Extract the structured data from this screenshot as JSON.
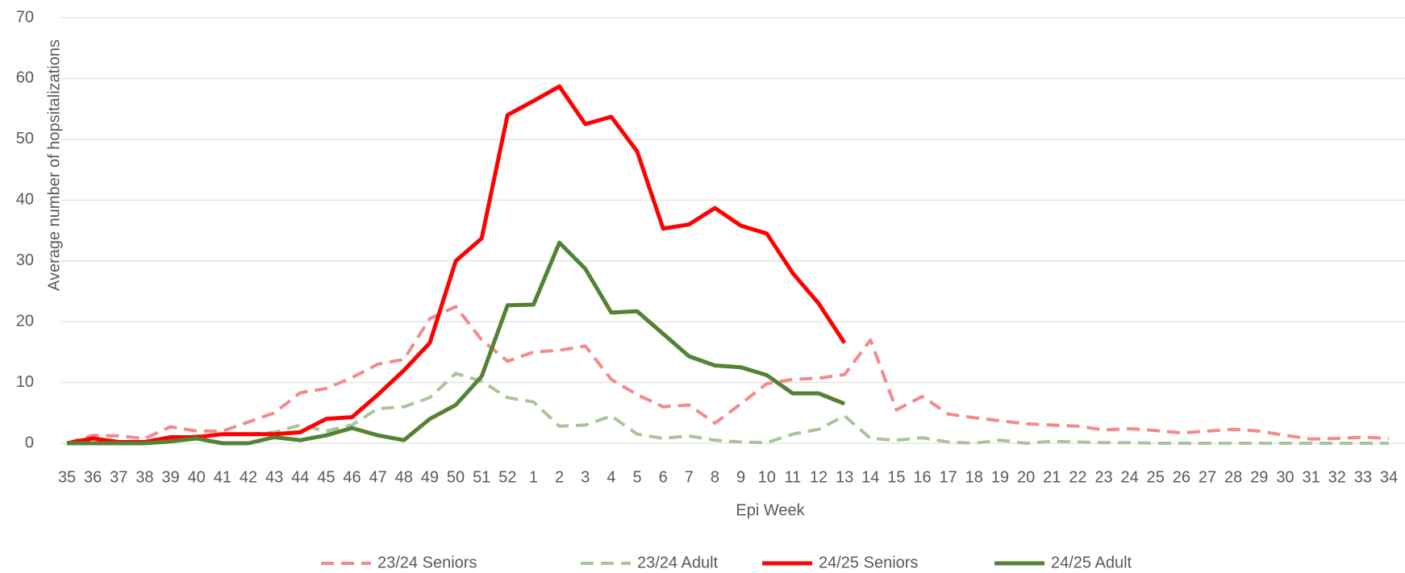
{
  "chart_data": {
    "type": "line",
    "x_label": "Epi Week",
    "y_label": "Average number of hopsitalizations",
    "categories": [
      "35",
      "36",
      "37",
      "38",
      "39",
      "40",
      "41",
      "42",
      "43",
      "44",
      "45",
      "46",
      "47",
      "48",
      "49",
      "50",
      "51",
      "52",
      "1",
      "2",
      "3",
      "4",
      "5",
      "6",
      "7",
      "8",
      "9",
      "10",
      "11",
      "12",
      "13",
      "14",
      "15",
      "16",
      "17",
      "18",
      "19",
      "20",
      "21",
      "22",
      "23",
      "24",
      "25",
      "26",
      "27",
      "28",
      "29",
      "30",
      "31",
      "32",
      "33",
      "34"
    ],
    "series": [
      {
        "name": "23/24 Seniors",
        "color": "#f4898a",
        "dashed": true,
        "values": [
          0,
          1.3,
          1.2,
          0.8,
          2.7,
          2,
          2,
          3.5,
          5,
          8.3,
          9,
          10.8,
          13,
          13.8,
          20.5,
          22.5,
          17,
          13.5,
          15,
          15.3,
          16,
          10.5,
          8,
          6,
          6.3,
          3.3,
          6.5,
          9.8,
          10.5,
          10.7,
          11.3,
          17,
          5.5,
          7.7,
          4.8,
          4.2,
          3.7,
          3.2,
          3,
          2.8,
          2.2,
          2.4,
          2.1,
          1.7,
          2,
          2.3,
          2,
          1.3,
          0.7,
          0.8,
          1,
          0.8
        ]
      },
      {
        "name": "23/24 Adult",
        "color": "#a9c49a",
        "dashed": true,
        "values": [
          0,
          0.8,
          0.3,
          0.3,
          0.5,
          1.2,
          1.5,
          1.5,
          1.8,
          3,
          2,
          3,
          5.7,
          6,
          7.5,
          11.5,
          10.2,
          7.5,
          6.8,
          2.8,
          3,
          4.5,
          1.5,
          0.8,
          1.2,
          0.5,
          0.2,
          0.1,
          1.5,
          2.3,
          4.5,
          0.8,
          0.5,
          0.9,
          0.2,
          0,
          0.5,
          0,
          0.3,
          0.2,
          0.1,
          0.1,
          0,
          0,
          0,
          0,
          0,
          0,
          0,
          0,
          0,
          0
        ]
      },
      {
        "name": "24/25 Seniors",
        "color": "#ff0000",
        "dashed": false,
        "values": [
          0,
          0.8,
          0.2,
          0.2,
          1,
          1,
          1.5,
          1.5,
          1.5,
          1.8,
          4,
          4.3,
          8,
          12,
          16.5,
          30,
          33.7,
          54,
          56.3,
          58.7,
          52.5,
          53.7,
          48,
          35.3,
          36,
          38.7,
          35.8,
          34.5,
          28,
          23,
          16.5,
          null,
          null,
          null,
          null,
          null,
          null,
          null,
          null,
          null,
          null,
          null,
          null,
          null,
          null,
          null,
          null,
          null,
          null,
          null,
          null,
          null
        ]
      },
      {
        "name": "24/25 Adult",
        "color": "#548235",
        "dashed": false,
        "values": [
          0,
          0,
          0,
          0,
          0.3,
          0.8,
          0,
          0,
          1,
          0.5,
          1.3,
          2.5,
          1.3,
          0.5,
          4,
          6.3,
          11,
          22.7,
          22.8,
          33,
          28.7,
          21.5,
          21.7,
          18,
          14.3,
          12.8,
          12.5,
          11.2,
          8.2,
          8.2,
          6.5,
          null,
          null,
          null,
          null,
          null,
          null,
          null,
          null,
          null,
          null,
          null,
          null,
          null,
          null,
          null,
          null,
          null,
          null,
          null,
          null,
          null
        ]
      }
    ],
    "ylim": [
      0,
      70
    ],
    "yticks": [
      0,
      10,
      20,
      30,
      40,
      50,
      60,
      70
    ],
    "grid": true,
    "legend": "bottom"
  }
}
